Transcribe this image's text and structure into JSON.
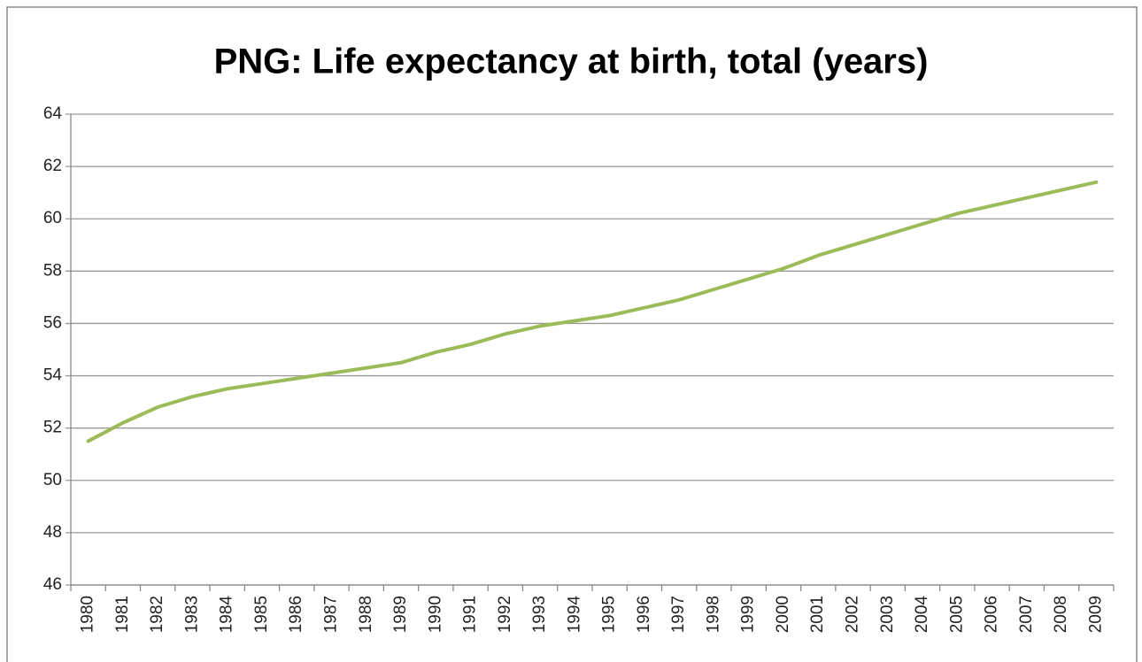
{
  "chart_data": {
    "type": "line",
    "title": "PNG: Life expectancy at birth, total (years)",
    "categories": [
      "1980",
      "1981",
      "1982",
      "1983",
      "1984",
      "1985",
      "1986",
      "1987",
      "1988",
      "1989",
      "1990",
      "1991",
      "1992",
      "1993",
      "1994",
      "1995",
      "1996",
      "1997",
      "1998",
      "1999",
      "2000",
      "2001",
      "2002",
      "2003",
      "2004",
      "2005",
      "2006",
      "2007",
      "2008",
      "2009"
    ],
    "series": [
      {
        "color": "#9bbb59",
        "values": [
          51.5,
          52.2,
          52.8,
          53.2,
          53.5,
          53.7,
          53.9,
          54.1,
          54.3,
          54.5,
          54.9,
          55.2,
          55.6,
          55.9,
          56.1,
          56.3,
          56.6,
          56.9,
          57.3,
          57.7,
          58.1,
          58.6,
          59.0,
          59.4,
          59.8,
          60.2,
          60.5,
          60.8,
          61.1,
          61.4
        ]
      }
    ],
    "ylim": [
      46,
      64
    ],
    "yticks": [
      46,
      48,
      50,
      52,
      54,
      56,
      58,
      60,
      62,
      64
    ],
    "grid": true
  }
}
